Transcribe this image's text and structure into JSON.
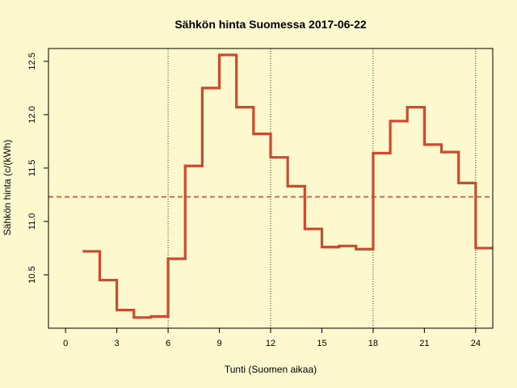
{
  "chart_data": {
    "type": "line",
    "step": true,
    "title": "Sähkön hinta Suomessa 2017-06-22",
    "xlabel": "Tunti (Suomen aikaa)",
    "ylabel": "Sähkön hinta (c/(kWh)",
    "xlim": [
      -1,
      25
    ],
    "ylim": [
      10.0,
      12.62
    ],
    "xticks": [
      0,
      3,
      6,
      9,
      12,
      15,
      18,
      21,
      24
    ],
    "xtick_labels": [
      "0",
      "3",
      "6",
      "9",
      "12",
      "15",
      "18",
      "21",
      "24"
    ],
    "yticks": [
      10.5,
      11.0,
      11.5,
      12.0,
      12.5
    ],
    "ytick_labels": [
      "10.5",
      "11.0",
      "11.5",
      "12.0",
      "12.5"
    ],
    "vlines": [
      6,
      12,
      18,
      24
    ],
    "mean_line": 11.23,
    "x": [
      1,
      2,
      3,
      4,
      5,
      6,
      7,
      8,
      9,
      10,
      11,
      12,
      13,
      14,
      15,
      16,
      17,
      18,
      19,
      20,
      21,
      22,
      23,
      24,
      25
    ],
    "y": [
      10.72,
      10.45,
      10.17,
      10.1,
      10.11,
      10.65,
      11.52,
      12.25,
      12.56,
      12.07,
      11.82,
      11.6,
      11.33,
      10.93,
      10.76,
      10.77,
      10.74,
      11.64,
      11.94,
      12.07,
      11.72,
      11.65,
      11.36,
      10.75,
      10.75
    ],
    "colors": {
      "line": "#cc4a30",
      "mean": "#cc4a30",
      "background": "#fdf8cd"
    },
    "grid": false
  }
}
